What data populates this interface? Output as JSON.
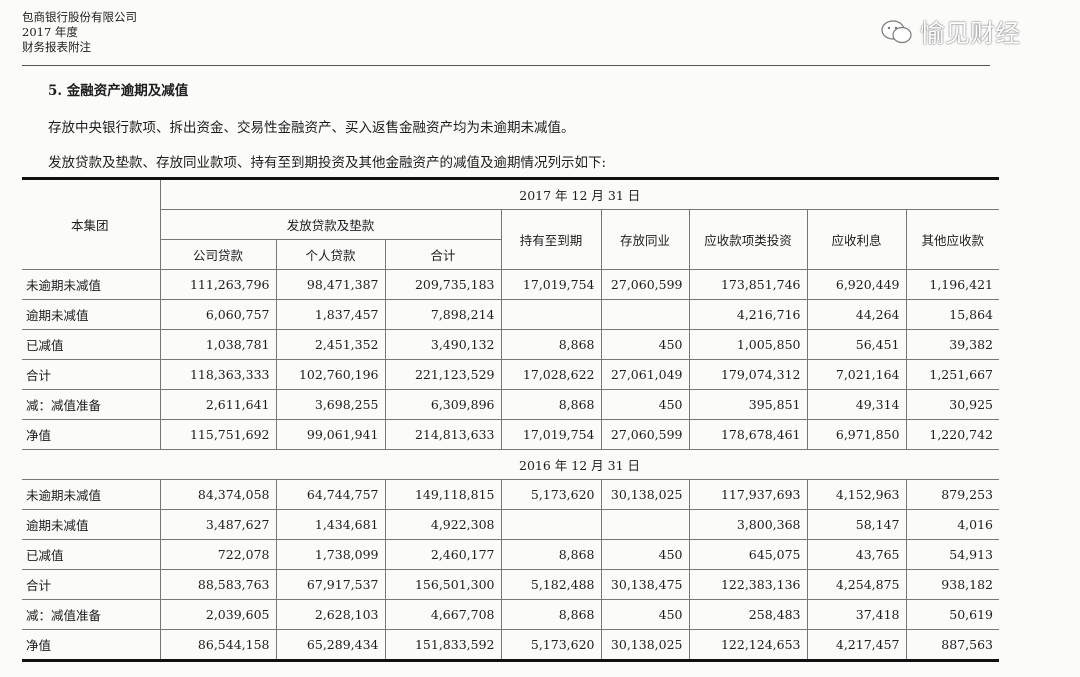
{
  "header": {
    "company": "包商银行股份有限公司",
    "year": "2017 年度",
    "doc": "财务报表附注"
  },
  "section_title": "5. 金融资产逾期及减值",
  "para1": "存放中央银行款项、拆出资金、交易性金融资产、买入返售金融资产均为未逾期未减值。",
  "para2": "发放贷款及垫款、存放同业款项、持有至到期投资及其他金融资产的减值及逾期情况列示如下:",
  "table": {
    "corner": "本集团",
    "loans_group": "发放贷款及垫款",
    "columns": [
      "公司贷款",
      "个人贷款",
      "合计",
      "持有至到期",
      "存放同业",
      "应收款项类投资",
      "应收利息",
      "其他应收款"
    ],
    "sections": [
      {
        "date": "2017 年 12 月 31 日",
        "rows": [
          {
            "label": "未逾期未减值",
            "values": [
              "111,263,796",
              "98,471,387",
              "209,735,183",
              "17,019,754",
              "27,060,599",
              "173,851,746",
              "6,920,449",
              "1,196,421"
            ]
          },
          {
            "label": "逾期未减值",
            "values": [
              "6,060,757",
              "1,837,457",
              "7,898,214",
              "",
              "",
              "4,216,716",
              "44,264",
              "15,864"
            ]
          },
          {
            "label": "已减值",
            "values": [
              "1,038,781",
              "2,451,352",
              "3,490,132",
              "8,868",
              "450",
              "1,005,850",
              "56,451",
              "39,382"
            ]
          },
          {
            "label": "合计",
            "values": [
              "118,363,333",
              "102,760,196",
              "221,123,529",
              "17,028,622",
              "27,061,049",
              "179,074,312",
              "7,021,164",
              "1,251,667"
            ]
          },
          {
            "label": "减：减值准备",
            "values": [
              "2,611,641",
              "3,698,255",
              "6,309,896",
              "8,868",
              "450",
              "395,851",
              "49,314",
              "30,925"
            ]
          },
          {
            "label": "净值",
            "values": [
              "115,751,692",
              "99,061,941",
              "214,813,633",
              "17,019,754",
              "27,060,599",
              "178,678,461",
              "6,971,850",
              "1,220,742"
            ]
          }
        ]
      },
      {
        "date": "2016 年 12 月 31 日",
        "rows": [
          {
            "label": "未逾期未减值",
            "values": [
              "84,374,058",
              "64,744,757",
              "149,118,815",
              "5,173,620",
              "30,138,025",
              "117,937,693",
              "4,152,963",
              "879,253"
            ]
          },
          {
            "label": "逾期未减值",
            "values": [
              "3,487,627",
              "1,434,681",
              "4,922,308",
              "",
              "",
              "3,800,368",
              "58,147",
              "4,016"
            ]
          },
          {
            "label": "已减值",
            "values": [
              "722,078",
              "1,738,099",
              "2,460,177",
              "8,868",
              "450",
              "645,075",
              "43,765",
              "54,913"
            ]
          },
          {
            "label": "合计",
            "values": [
              "88,583,763",
              "67,917,537",
              "156,501,300",
              "5,182,488",
              "30,138,475",
              "122,383,136",
              "4,254,875",
              "938,182"
            ]
          },
          {
            "label": "减：减值准备",
            "values": [
              "2,039,605",
              "2,628,103",
              "4,667,708",
              "8,868",
              "450",
              "258,483",
              "37,418",
              "50,619"
            ]
          },
          {
            "label": "净值",
            "values": [
              "86,544,158",
              "65,289,434",
              "151,833,592",
              "5,173,620",
              "30,138,025",
              "122,124,653",
              "4,217,457",
              "887,563"
            ]
          }
        ]
      }
    ]
  },
  "watermark": {
    "text": "愉见财经",
    "icon": "wechat-icon"
  }
}
